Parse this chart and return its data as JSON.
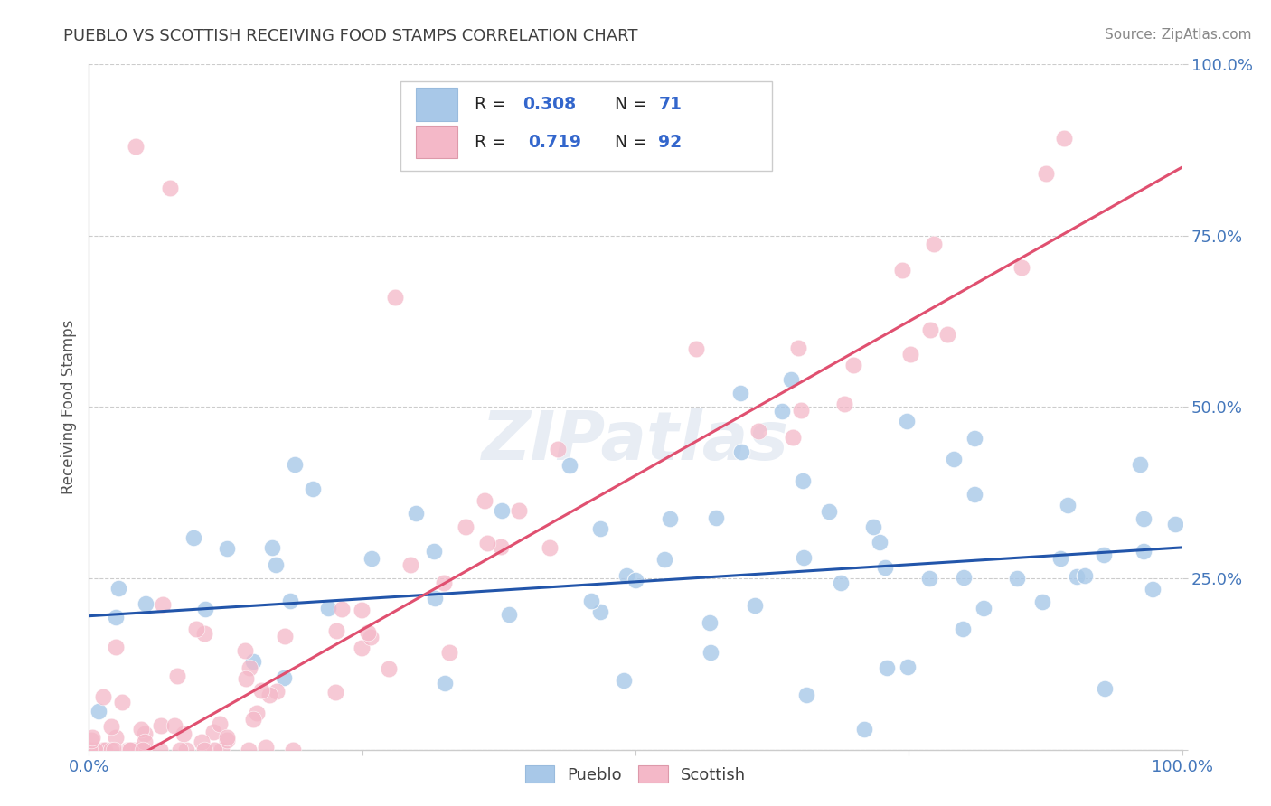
{
  "title": "PUEBLO VS SCOTTISH RECEIVING FOOD STAMPS CORRELATION CHART",
  "source_text": "Source: ZipAtlas.com",
  "ylabel": "Receiving Food Stamps",
  "xlim": [
    0.0,
    1.0
  ],
  "ylim": [
    0.0,
    1.0
  ],
  "x_ticks": [
    0.0,
    0.25,
    0.5,
    0.75,
    1.0
  ],
  "y_ticks": [
    0.0,
    0.25,
    0.5,
    0.75,
    1.0
  ],
  "pueblo_color": "#a8c8e8",
  "scottish_color": "#f4b8c8",
  "pueblo_line_color": "#2255aa",
  "scottish_line_color": "#e05070",
  "pueblo_R": 0.308,
  "pueblo_N": 71,
  "scottish_R": 0.719,
  "scottish_N": 92,
  "pueblo_slope": 0.1,
  "pueblo_intercept": 0.195,
  "scottish_slope": 0.9,
  "scottish_intercept": -0.05,
  "watermark": "ZIPatlas",
  "background_color": "#ffffff",
  "grid_color": "#cccccc",
  "title_color": "#404040",
  "tick_color": "#4477bb",
  "title_fontsize": 13,
  "tick_fontsize": 13,
  "ylabel_fontsize": 12
}
